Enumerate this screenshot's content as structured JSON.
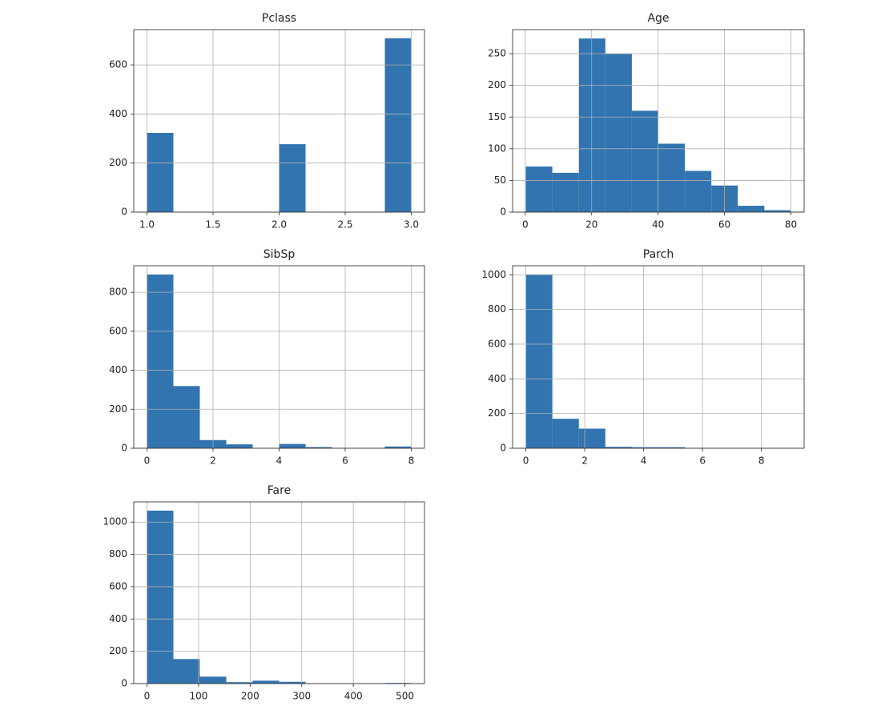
{
  "chart_data": [
    {
      "type": "histogram",
      "title": "Pclass",
      "color": "#3274b0",
      "grid": true,
      "bins": [
        1.0,
        1.2,
        1.4,
        1.6,
        1.8,
        2.0,
        2.2,
        2.4,
        2.6,
        2.8,
        3.0
      ],
      "counts": [
        323,
        0,
        0,
        0,
        0,
        277,
        0,
        0,
        0,
        709
      ],
      "xlim": [
        0.9,
        3.1
      ],
      "ylim": [
        0,
        744
      ],
      "xticks": [
        {
          "value": 1,
          "label": "1.0"
        },
        {
          "value": 1.5,
          "label": "1.5"
        },
        {
          "value": 2,
          "label": "2.0"
        },
        {
          "value": 2.5,
          "label": "2.5"
        },
        {
          "value": 3,
          "label": "3.0"
        }
      ],
      "yticks": [
        0,
        200,
        400,
        600
      ]
    },
    {
      "type": "histogram",
      "title": "Age",
      "color": "#3274b0",
      "grid": true,
      "bins": [
        0.17,
        8.153,
        16.136,
        24.119,
        32.102,
        40.085,
        48.068,
        56.051,
        64.034,
        72.017,
        80
      ],
      "counts": [
        72,
        62,
        274,
        250,
        160,
        108,
        65,
        42,
        10,
        3
      ],
      "xlim": [
        -3.82,
        83.99
      ],
      "ylim": [
        0,
        288
      ],
      "xticks": [
        0,
        20,
        40,
        60,
        80
      ],
      "yticks": [
        0,
        50,
        100,
        150,
        200,
        250
      ]
    },
    {
      "type": "histogram",
      "title": "SibSp",
      "color": "#3274b0",
      "grid": true,
      "bins": [
        0,
        0.8,
        1.6,
        2.4,
        3.2,
        4.0,
        4.8,
        5.6,
        6.4,
        7.2,
        8
      ],
      "counts": [
        891,
        319,
        42,
        20,
        0,
        22,
        6,
        0,
        0,
        9
      ],
      "xlim": [
        -0.4,
        8.4
      ],
      "ylim": [
        0,
        936
      ],
      "xticks": [
        0,
        2,
        4,
        6,
        8
      ],
      "yticks": [
        0,
        200,
        400,
        600,
        800
      ]
    },
    {
      "type": "histogram",
      "title": "Parch",
      "color": "#3274b0",
      "grid": true,
      "bins": [
        0,
        0.9,
        1.8,
        2.7,
        3.6,
        4.5,
        5.4,
        6.3,
        7.2,
        8.1,
        9
      ],
      "counts": [
        1002,
        170,
        113,
        8,
        6,
        6,
        2,
        0,
        0,
        2
      ],
      "xlim": [
        -0.45,
        9.45
      ],
      "ylim": [
        0,
        1052
      ],
      "xticks": [
        0,
        2,
        4,
        6,
        8
      ],
      "yticks": [
        0,
        200,
        400,
        600,
        800,
        1000
      ]
    },
    {
      "type": "histogram",
      "title": "Fare",
      "color": "#3274b0",
      "grid": true,
      "bins": [
        0,
        51.233,
        102.466,
        153.699,
        204.932,
        256.165,
        307.398,
        358.63,
        409.863,
        461.096,
        512.329
      ],
      "counts": [
        1071,
        152,
        43,
        9,
        18,
        11,
        0,
        0,
        0,
        4
      ],
      "xlim": [
        -25.6,
        537.9
      ],
      "ylim": [
        0,
        1125
      ],
      "xticks": [
        0,
        100,
        200,
        300,
        400,
        500
      ],
      "yticks": [
        0,
        200,
        400,
        600,
        800,
        1000
      ]
    }
  ]
}
